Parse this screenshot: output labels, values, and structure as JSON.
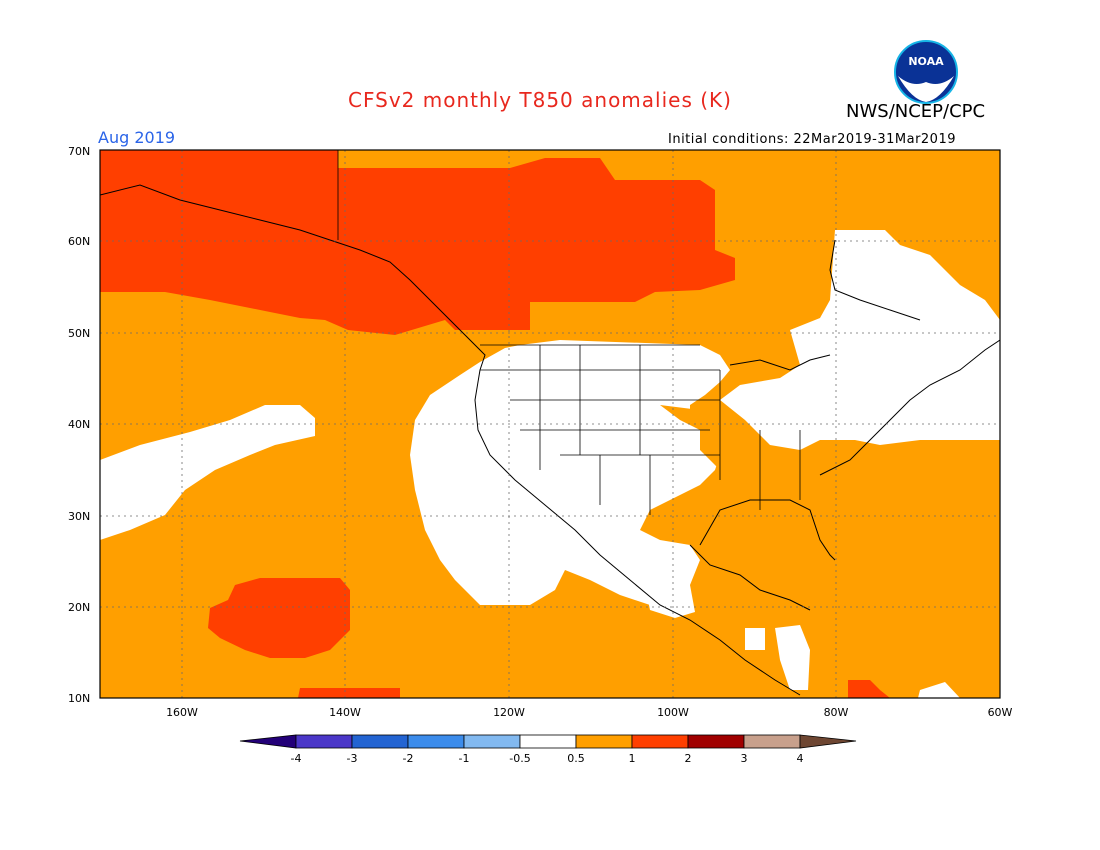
{
  "header": {
    "title": "CFSv2 monthly T850 anomalies (K)",
    "agency": "NWS/NCEP/CPC",
    "logo_text": "NOAA",
    "month": "Aug 2019",
    "init_conditions": "Initial conditions: 22Mar2019-31Mar2019"
  },
  "colors": {
    "title": "#e8281e",
    "month": "#2a64e8",
    "anomaly_0_5_to_1": "#ff9f00",
    "anomaly_1_to_2": "#ff3f00",
    "neutral": "#ffffff"
  },
  "axes": {
    "lat_labels": [
      "70N",
      "60N",
      "50N",
      "40N",
      "30N",
      "20N",
      "10N"
    ],
    "lon_labels": [
      "160W",
      "140W",
      "120W",
      "100W",
      "80W",
      "60W"
    ]
  },
  "colorbar": {
    "labels": [
      "-4",
      "-3",
      "-2",
      "-1",
      "-0.5",
      "0.5",
      "1",
      "2",
      "3",
      "4"
    ],
    "colors": [
      "#230078",
      "#4b37c8",
      "#2364d2",
      "#3c8ceb",
      "#82b9f0",
      "#ffffff",
      "#ff9f00",
      "#ff3f00",
      "#a00000",
      "#c8a08c",
      "#6e4632"
    ]
  },
  "map": {
    "lat_range": [
      10,
      70
    ],
    "lon_range": [
      -170,
      -60
    ],
    "regions": [
      {
        "name": "Alaska and western Canada",
        "category": "1 to 2 K"
      },
      {
        "name": "Central and northern Canada",
        "category": "1 to 2 K"
      },
      {
        "name": "Eastern Pacific near Hawaii",
        "category": "1 to 2 K"
      },
      {
        "name": "Western and central United States",
        "category": "-0.5 to 0.5 K"
      },
      {
        "name": "Eastern Canada and New England",
        "category": "-0.5 to 0.5 K"
      },
      {
        "name": "Mid-latitude North Pacific band",
        "category": "-0.5 to 0.5 K"
      },
      {
        "name": "Remainder of domain",
        "category": "0.5 to 1 K"
      }
    ]
  }
}
